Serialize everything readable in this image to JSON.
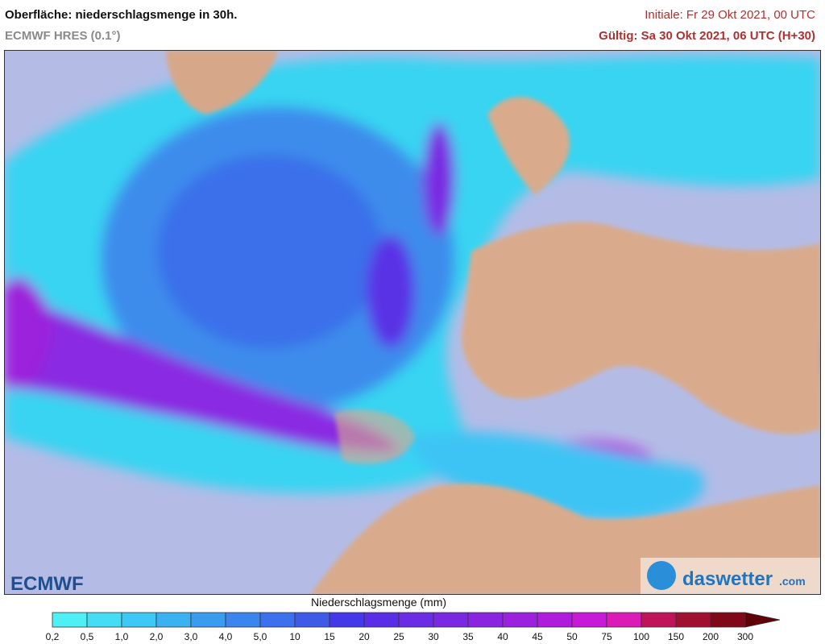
{
  "header": {
    "title": "Oberfläche: niederschlagsmenge in 30h.",
    "subtitle": "ECMWF HRES (0.1°)",
    "initial": "Initiale: Fr 29 Okt 2021, 00 UTC",
    "valid": "Gültig: Sa 30 Okt 2021, 06 UTC (H+30)"
  },
  "logos": {
    "left": "ECMWF",
    "right": "daswetter",
    "right_suffix": ".com"
  },
  "legend": {
    "title": "Niederschlagsmenge (mm)",
    "ticks": [
      "0,2",
      "0,5",
      "1,0",
      "2,0",
      "3,0",
      "4,0",
      "5,0",
      "10",
      "15",
      "20",
      "25",
      "30",
      "35",
      "40",
      "45",
      "50",
      "75",
      "100",
      "150",
      "200",
      "300"
    ],
    "colors": [
      "#4ff0f5",
      "#45dcf5",
      "#3ec8f5",
      "#3ab2f2",
      "#3a9cf0",
      "#3a86ee",
      "#3c70ec",
      "#3f5ae8",
      "#4438e8",
      "#5a2ee6",
      "#6a2ce4",
      "#7a28e2",
      "#8a24e0",
      "#9c20de",
      "#b01cdc",
      "#c818d8",
      "#dc1ab8",
      "#c0145a",
      "#a01030",
      "#800818",
      "#600008"
    ]
  }
}
